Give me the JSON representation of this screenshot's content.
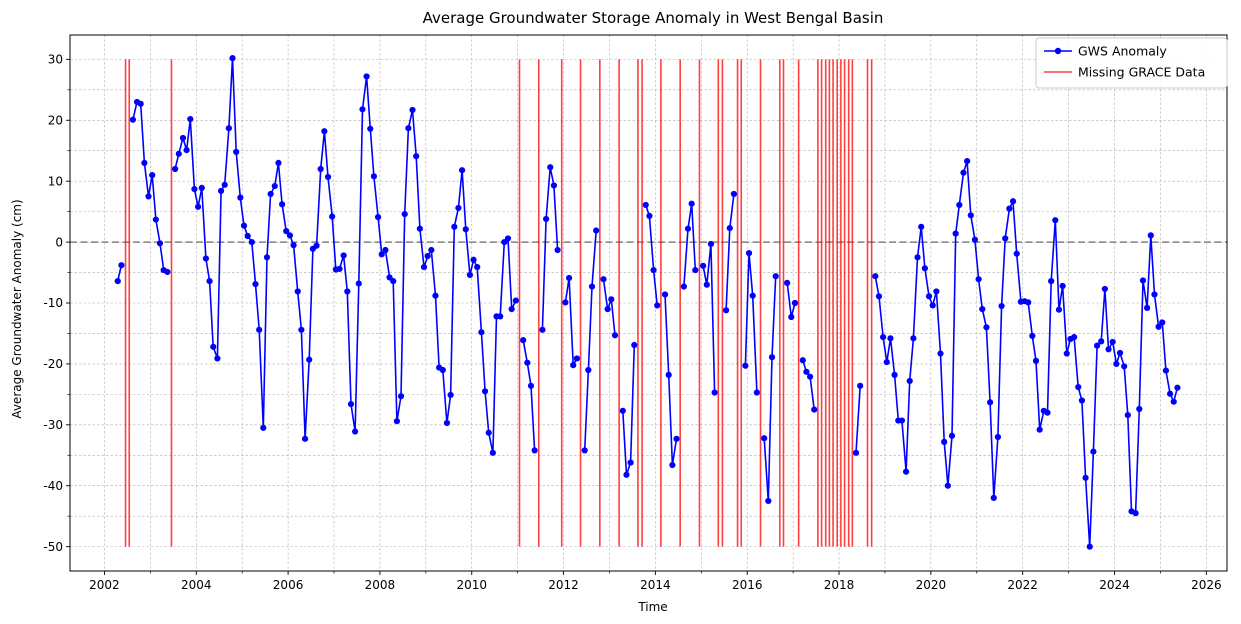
{
  "chart_data": {
    "type": "line",
    "title": "Average Groundwater Storage Anomaly in West Bengal Basin",
    "xlabel": "Time",
    "ylabel": "Average Groundwater Anomaly (cm)",
    "xlim": [
      2001.25,
      2026.45
    ],
    "ylim": [
      -54,
      34
    ],
    "xticks": [
      2002,
      2004,
      2006,
      2008,
      2010,
      2012,
      2014,
      2016,
      2018,
      2020,
      2022,
      2024,
      2026
    ],
    "yticks": [
      -50,
      -40,
      -30,
      -20,
      -10,
      0,
      10,
      20,
      30
    ],
    "grid": true,
    "legend_position": "top-right",
    "zero_line": 0,
    "missing_line_range": [
      -50,
      30
    ],
    "series": [
      {
        "name": "GWS Anomaly",
        "color": "#0000ff",
        "marker": "circle",
        "segments": [
          [
            [
              2002.29,
              -6.4
            ],
            [
              2002.37,
              -3.8
            ]
          ],
          [
            [
              2002.62,
              20.1
            ],
            [
              2002.71,
              23.0
            ],
            [
              2002.79,
              22.7
            ],
            [
              2002.87,
              13.0
            ],
            [
              2002.96,
              7.5
            ],
            [
              2003.04,
              11.0
            ],
            [
              2003.12,
              3.7
            ],
            [
              2003.21,
              -0.2
            ],
            [
              2003.29,
              -4.6
            ],
            [
              2003.37,
              -4.9
            ]
          ],
          [
            [
              2003.54,
              12.0
            ],
            [
              2003.62,
              14.5
            ],
            [
              2003.71,
              17.1
            ],
            [
              2003.79,
              15.1
            ],
            [
              2003.87,
              20.2
            ],
            [
              2003.96,
              8.7
            ],
            [
              2004.04,
              5.8
            ],
            [
              2004.12,
              8.9
            ],
            [
              2004.21,
              -2.7
            ],
            [
              2004.29,
              -6.4
            ],
            [
              2004.37,
              -17.2
            ],
            [
              2004.46,
              -19.1
            ],
            [
              2004.54,
              8.4
            ],
            [
              2004.62,
              9.4
            ],
            [
              2004.71,
              18.7
            ],
            [
              2004.79,
              30.2
            ],
            [
              2004.87,
              14.8
            ],
            [
              2004.96,
              7.3
            ],
            [
              2005.04,
              2.7
            ],
            [
              2005.12,
              1.0
            ],
            [
              2005.21,
              0.0
            ],
            [
              2005.29,
              -6.9
            ],
            [
              2005.37,
              -14.4
            ],
            [
              2005.46,
              -30.5
            ],
            [
              2005.54,
              -2.5
            ],
            [
              2005.62,
              7.9
            ],
            [
              2005.71,
              9.2
            ],
            [
              2005.79,
              13.0
            ],
            [
              2005.87,
              6.2
            ],
            [
              2005.96,
              1.8
            ],
            [
              2006.04,
              1.1
            ],
            [
              2006.12,
              -0.5
            ],
            [
              2006.21,
              -8.1
            ],
            [
              2006.29,
              -14.4
            ],
            [
              2006.37,
              -32.3
            ],
            [
              2006.46,
              -19.3
            ],
            [
              2006.54,
              -1.1
            ],
            [
              2006.62,
              -0.6
            ],
            [
              2006.71,
              12.0
            ],
            [
              2006.79,
              18.2
            ],
            [
              2006.87,
              10.7
            ],
            [
              2006.96,
              4.2
            ],
            [
              2007.04,
              -4.5
            ],
            [
              2007.12,
              -4.4
            ],
            [
              2007.21,
              -2.2
            ],
            [
              2007.29,
              -8.1
            ],
            [
              2007.37,
              -26.6
            ],
            [
              2007.46,
              -31.1
            ],
            [
              2007.54,
              -6.8
            ],
            [
              2007.62,
              21.8
            ],
            [
              2007.71,
              27.2
            ],
            [
              2007.79,
              18.6
            ],
            [
              2007.87,
              10.8
            ],
            [
              2007.96,
              4.1
            ],
            [
              2008.04,
              -2.0
            ],
            [
              2008.12,
              -1.3
            ],
            [
              2008.21,
              -5.8
            ],
            [
              2008.29,
              -6.4
            ],
            [
              2008.37,
              -29.4
            ],
            [
              2008.46,
              -25.3
            ],
            [
              2008.54,
              4.6
            ],
            [
              2008.62,
              18.7
            ],
            [
              2008.71,
              21.7
            ],
            [
              2008.79,
              14.1
            ],
            [
              2008.87,
              2.2
            ],
            [
              2008.96,
              -4.1
            ],
            [
              2009.04,
              -2.3
            ],
            [
              2009.12,
              -1.3
            ],
            [
              2009.21,
              -8.8
            ],
            [
              2009.29,
              -20.6
            ],
            [
              2009.37,
              -21.0
            ],
            [
              2009.46,
              -29.7
            ],
            [
              2009.54,
              -25.1
            ],
            [
              2009.62,
              2.5
            ],
            [
              2009.71,
              5.6
            ],
            [
              2009.79,
              11.8
            ],
            [
              2009.87,
              2.1
            ],
            [
              2009.96,
              -5.4
            ],
            [
              2010.04,
              -2.9
            ],
            [
              2010.12,
              -4.1
            ],
            [
              2010.21,
              -14.8
            ],
            [
              2010.29,
              -24.5
            ],
            [
              2010.37,
              -31.3
            ],
            [
              2010.46,
              -34.6
            ],
            [
              2010.54,
              -12.2
            ],
            [
              2010.62,
              -12.2
            ],
            [
              2010.71,
              0.0
            ],
            [
              2010.79,
              0.6
            ],
            [
              2010.87,
              -11.0
            ],
            [
              2010.96,
              -9.6
            ]
          ],
          [
            [
              2011.12,
              -16.1
            ],
            [
              2011.21,
              -19.8
            ],
            [
              2011.29,
              -23.6
            ],
            [
              2011.37,
              -34.2
            ]
          ],
          [
            [
              2011.54,
              -14.4
            ],
            [
              2011.62,
              3.8
            ],
            [
              2011.71,
              12.3
            ],
            [
              2011.79,
              9.3
            ],
            [
              2011.87,
              -1.3
            ]
          ],
          [
            [
              2012.04,
              -9.9
            ],
            [
              2012.12,
              -5.9
            ],
            [
              2012.21,
              -20.2
            ],
            [
              2012.29,
              -19.1
            ]
          ],
          [
            [
              2012.46,
              -34.2
            ],
            [
              2012.54,
              -21.0
            ],
            [
              2012.62,
              -7.3
            ],
            [
              2012.71,
              1.9
            ]
          ],
          [
            [
              2012.87,
              -6.1
            ],
            [
              2012.96,
              -11.0
            ],
            [
              2013.04,
              -9.4
            ],
            [
              2013.12,
              -15.3
            ]
          ],
          [
            [
              2013.29,
              -27.7
            ],
            [
              2013.37,
              -38.2
            ],
            [
              2013.46,
              -36.2
            ],
            [
              2013.54,
              -16.9
            ]
          ],
          [
            [
              2013.79,
              6.1
            ],
            [
              2013.87,
              4.3
            ],
            [
              2013.96,
              -4.6
            ],
            [
              2014.04,
              -10.4
            ]
          ],
          [
            [
              2014.21,
              -8.6
            ],
            [
              2014.29,
              -21.8
            ],
            [
              2014.37,
              -36.6
            ],
            [
              2014.46,
              -32.3
            ]
          ],
          [
            [
              2014.62,
              -7.3
            ],
            [
              2014.71,
              2.2
            ],
            [
              2014.79,
              6.3
            ],
            [
              2014.87,
              -4.6
            ]
          ],
          [
            [
              2015.04,
              -3.9
            ],
            [
              2015.12,
              -7.0
            ],
            [
              2015.21,
              -0.3
            ],
            [
              2015.29,
              -24.7
            ]
          ],
          [
            [
              2015.54,
              -11.2
            ],
            [
              2015.62,
              2.3
            ],
            [
              2015.71,
              7.9
            ]
          ],
          [
            [
              2015.96,
              -20.3
            ],
            [
              2016.04,
              -1.8
            ],
            [
              2016.12,
              -8.8
            ],
            [
              2016.21,
              -24.7
            ]
          ],
          [
            [
              2016.37,
              -32.2
            ],
            [
              2016.46,
              -42.5
            ],
            [
              2016.54,
              -18.9
            ],
            [
              2016.62,
              -5.6
            ]
          ],
          [
            [
              2016.87,
              -6.7
            ],
            [
              2016.96,
              -12.3
            ],
            [
              2017.04,
              -10.0
            ]
          ],
          [
            [
              2017.21,
              -19.4
            ],
            [
              2017.29,
              -21.3
            ],
            [
              2017.37,
              -22.1
            ],
            [
              2017.46,
              -27.5
            ]
          ],
          [
            [
              2018.37,
              -34.6
            ],
            [
              2018.46,
              -23.6
            ]
          ],
          [
            [
              2018.79,
              -5.6
            ],
            [
              2018.87,
              -8.9
            ],
            [
              2018.96,
              -15.6
            ],
            [
              2019.04,
              -19.7
            ],
            [
              2019.12,
              -15.8
            ],
            [
              2019.21,
              -21.8
            ],
            [
              2019.29,
              -29.3
            ],
            [
              2019.37,
              -29.3
            ],
            [
              2019.46,
              -37.7
            ],
            [
              2019.54,
              -22.8
            ],
            [
              2019.62,
              -15.8
            ],
            [
              2019.71,
              -2.5
            ],
            [
              2019.79,
              2.5
            ],
            [
              2019.87,
              -4.3
            ],
            [
              2019.96,
              -8.9
            ],
            [
              2020.04,
              -10.4
            ],
            [
              2020.12,
              -8.1
            ],
            [
              2020.21,
              -18.3
            ],
            [
              2020.29,
              -32.8
            ],
            [
              2020.37,
              -40.0
            ],
            [
              2020.46,
              -31.8
            ],
            [
              2020.54,
              1.4
            ],
            [
              2020.62,
              6.1
            ],
            [
              2020.71,
              11.4
            ],
            [
              2020.79,
              13.3
            ],
            [
              2020.87,
              4.4
            ],
            [
              2020.96,
              0.4
            ],
            [
              2021.04,
              -6.1
            ],
            [
              2021.12,
              -11.0
            ],
            [
              2021.21,
              -14.0
            ],
            [
              2021.29,
              -26.3
            ],
            [
              2021.37,
              -42.0
            ],
            [
              2021.46,
              -32.0
            ],
            [
              2021.54,
              -10.5
            ],
            [
              2021.62,
              0.6
            ],
            [
              2021.71,
              5.5
            ],
            [
              2021.79,
              6.7
            ],
            [
              2021.87,
              -1.9
            ],
            [
              2021.96,
              -9.8
            ],
            [
              2022.04,
              -9.7
            ],
            [
              2022.12,
              -9.9
            ],
            [
              2022.21,
              -15.4
            ],
            [
              2022.29,
              -19.5
            ],
            [
              2022.37,
              -30.8
            ],
            [
              2022.46,
              -27.7
            ],
            [
              2022.54,
              -28.0
            ],
            [
              2022.62,
              -6.4
            ],
            [
              2022.71,
              3.6
            ],
            [
              2022.79,
              -11.1
            ],
            [
              2022.87,
              -7.2
            ],
            [
              2022.96,
              -18.3
            ],
            [
              2023.04,
              -15.9
            ],
            [
              2023.12,
              -15.6
            ],
            [
              2023.21,
              -23.8
            ],
            [
              2023.29,
              -26.0
            ],
            [
              2023.37,
              -38.7
            ],
            [
              2023.46,
              -50.0
            ],
            [
              2023.54,
              -34.4
            ],
            [
              2023.62,
              -17.0
            ],
            [
              2023.71,
              -16.3
            ],
            [
              2023.79,
              -7.7
            ],
            [
              2023.87,
              -17.6
            ],
            [
              2023.96,
              -16.4
            ],
            [
              2024.04,
              -20.0
            ],
            [
              2024.12,
              -18.2
            ],
            [
              2024.21,
              -20.4
            ],
            [
              2024.29,
              -28.4
            ],
            [
              2024.37,
              -44.2
            ],
            [
              2024.46,
              -44.5
            ],
            [
              2024.54,
              -27.4
            ],
            [
              2024.62,
              -6.3
            ],
            [
              2024.71,
              -10.8
            ],
            [
              2024.79,
              1.1
            ],
            [
              2024.87,
              -8.6
            ],
            [
              2024.96,
              -13.9
            ],
            [
              2025.04,
              -13.2
            ],
            [
              2025.12,
              -21.1
            ],
            [
              2025.21,
              -24.9
            ],
            [
              2025.29,
              -26.2
            ],
            [
              2025.37,
              -23.9
            ]
          ]
        ]
      },
      {
        "name": "Missing GRACE Data",
        "color": "#ff0000",
        "x": [
          2002.46,
          2002.54,
          2003.46,
          2011.04,
          2011.46,
          2011.96,
          2012.37,
          2012.79,
          2013.21,
          2013.62,
          2013.71,
          2014.12,
          2014.54,
          2014.96,
          2015.37,
          2015.46,
          2015.79,
          2015.87,
          2016.29,
          2016.71,
          2016.79,
          2017.12,
          2017.54,
          2017.62,
          2017.71,
          2017.79,
          2017.87,
          2017.96,
          2018.04,
          2018.12,
          2018.21,
          2018.29,
          2018.62,
          2018.71
        ]
      }
    ]
  }
}
